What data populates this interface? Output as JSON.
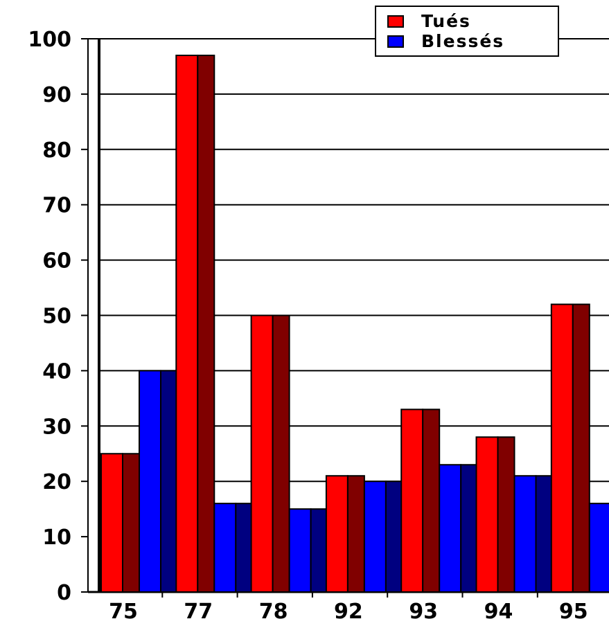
{
  "chart_data": {
    "type": "bar",
    "categories": [
      "75",
      "77",
      "78",
      "92",
      "93",
      "94",
      "95"
    ],
    "series": [
      {
        "name": "Tués",
        "values": [
          25,
          97,
          50,
          21,
          33,
          28,
          52
        ],
        "color": "#ff0000",
        "side_color": "#800000"
      },
      {
        "name": "Blessés",
        "values": [
          40,
          16,
          15,
          20,
          23,
          21,
          16
        ],
        "color": "#0000ff",
        "side_color": "#000080"
      }
    ],
    "y_ticks": [
      "0",
      "10",
      "20",
      "30",
      "40",
      "50",
      "60",
      "70",
      "80",
      "90",
      "100"
    ],
    "ylim": [
      0,
      100
    ],
    "grid": true,
    "legend_position": "top-right"
  }
}
